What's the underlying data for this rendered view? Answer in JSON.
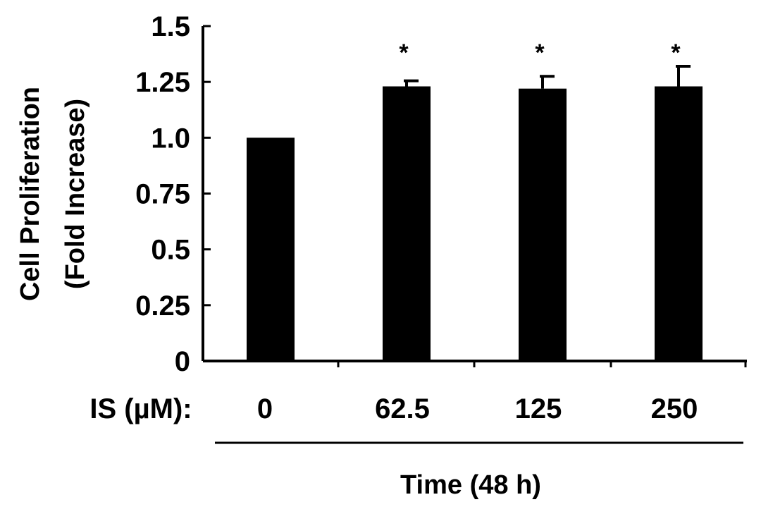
{
  "chart_data": {
    "type": "bar",
    "categories": [
      "0",
      "62.5",
      "125",
      "250"
    ],
    "values": [
      1.0,
      1.23,
      1.22,
      1.23
    ],
    "error_bars": [
      0.0,
      0.025,
      0.055,
      0.09
    ],
    "significance": [
      "",
      "*",
      "*",
      "*"
    ],
    "ylabel_line1": "Cell Proliferation",
    "ylabel_line2": "(Fold Increase)",
    "category_axis_label": "IS (µM):",
    "xlabel": "Time (48 h)",
    "y_ticks": [
      0,
      0.25,
      0.5,
      0.75,
      1.0,
      1.25,
      1.5
    ],
    "y_tick_labels": [
      "0",
      "0.25",
      "0.5",
      "0.75",
      "1.0",
      "1.25",
      "1.5"
    ],
    "ylim": [
      0,
      1.5
    ],
    "bar_color": "#000000",
    "grid": false
  }
}
